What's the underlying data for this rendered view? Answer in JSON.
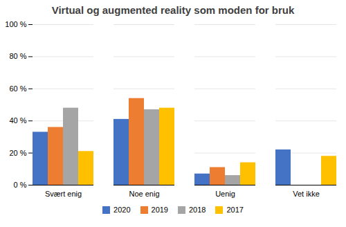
{
  "chart_data": {
    "type": "bar",
    "title": "Virtual og augmented reality som moden for bruk",
    "categories": [
      "Svært enig",
      "Noe enig",
      "Uenig",
      "Vet ikke"
    ],
    "series": [
      {
        "name": "2020",
        "color": "#4472C4",
        "values": [
          0.33,
          0.41,
          0.07,
          0.22
        ]
      },
      {
        "name": "2019",
        "color": "#ED7D31",
        "values": [
          0.36,
          0.54,
          0.11,
          0.0
        ]
      },
      {
        "name": "2018",
        "color": "#A5A5A5",
        "values": [
          0.48,
          0.47,
          0.06,
          0.0
        ]
      },
      {
        "name": "2017",
        "color": "#FFC000",
        "values": [
          0.21,
          0.48,
          0.14,
          0.18
        ]
      }
    ],
    "ylim": [
      0,
      1.0
    ],
    "yticks": [
      {
        "value": 0.0,
        "label": "0 %"
      },
      {
        "value": 0.2,
        "label": "20 %"
      },
      {
        "value": 0.4,
        "label": "40 %"
      },
      {
        "value": 0.6,
        "label": "60 %"
      },
      {
        "value": 0.8,
        "label": "80 %"
      },
      {
        "value": 1.0,
        "label": "100 %"
      }
    ],
    "grid": true,
    "legend": "bottom"
  }
}
